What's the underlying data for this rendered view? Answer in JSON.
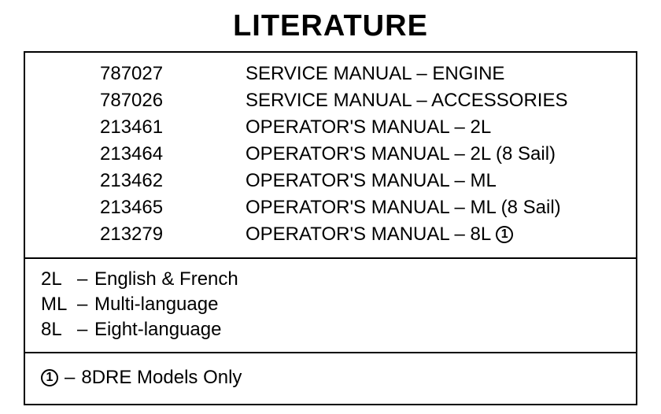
{
  "title": "LITERATURE",
  "items": [
    {
      "code": "787027",
      "desc": "SERVICE MANUAL – ENGINE",
      "note_ref": null
    },
    {
      "code": "787026",
      "desc": "SERVICE MANUAL – ACCESSORIES",
      "note_ref": null
    },
    {
      "code": "213461",
      "desc": "OPERATOR'S MANUAL – 2L",
      "note_ref": null
    },
    {
      "code": "213464",
      "desc": "OPERATOR'S MANUAL – 2L (8 Sail)",
      "note_ref": null
    },
    {
      "code": "213462",
      "desc": "OPERATOR'S MANUAL – ML",
      "note_ref": null
    },
    {
      "code": "213465",
      "desc": "OPERATOR'S MANUAL – ML (8 Sail)",
      "note_ref": null
    },
    {
      "code": "213279",
      "desc": "OPERATOR'S MANUAL – 8L",
      "note_ref": "1"
    }
  ],
  "legend": [
    {
      "key": "2L",
      "dash": "–",
      "text": "English & French"
    },
    {
      "key": "ML",
      "dash": "–",
      "text": "Multi-language"
    },
    {
      "key": "8L",
      "dash": "–",
      "text": "Eight-language"
    }
  ],
  "notes": [
    {
      "ref": "1",
      "dash": "–",
      "text": "8DRE Models Only"
    }
  ],
  "styles": {
    "title_fontsize": 38,
    "body_fontsize": 24,
    "border_color": "#000000",
    "background_color": "#ffffff",
    "text_color": "#000000",
    "font_family": "Arial, Helvetica, sans-serif"
  }
}
